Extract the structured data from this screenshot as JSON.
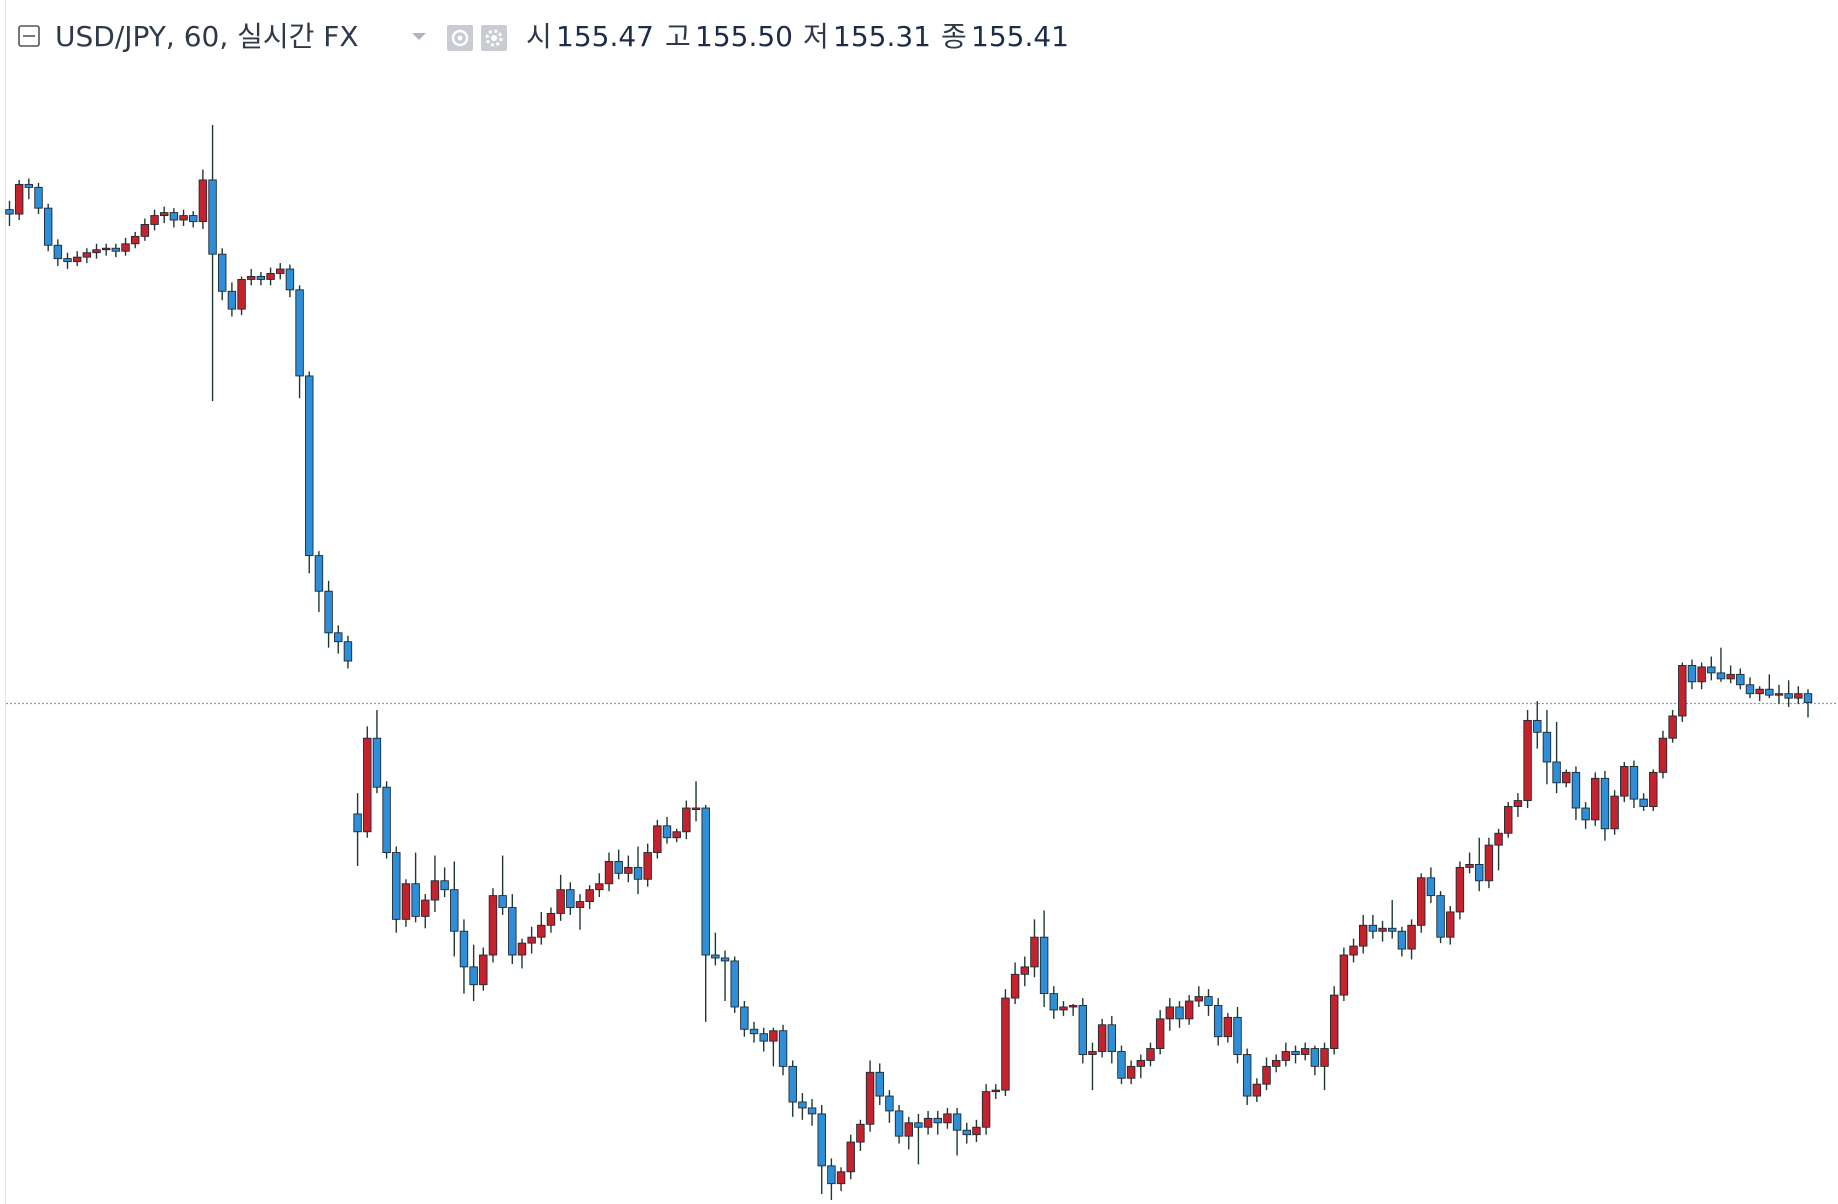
{
  "chart_data": {
    "type": "candlestick",
    "title": "USD/JPY, 60, 실시간 FX",
    "legend_values": [
      {
        "name": "시",
        "text": "155.47"
      },
      {
        "name": "고",
        "text": "155.50"
      },
      {
        "name": "저",
        "text": "155.31"
      },
      {
        "name": "종",
        "text": "155.41"
      }
    ],
    "up_color": "#c4232e",
    "down_color": "#2e8fd8",
    "wick_color": "#1f3a2b",
    "price_line": true,
    "price_line_color": "#7b9ccc",
    "open": [
      158.73,
      158.7,
      158.9,
      158.88,
      158.74,
      158.49,
      158.4,
      158.38,
      158.41,
      158.44,
      158.46,
      158.47,
      158.45,
      158.5,
      158.55,
      158.63,
      158.69,
      158.71,
      158.66,
      158.69,
      158.65,
      158.93,
      158.43,
      158.18,
      158.06,
      158.26,
      158.28,
      158.26,
      158.3,
      158.33,
      158.19,
      157.61,
      156.4,
      156.16,
      155.88,
      155.82,
      154.66,
      154.54,
      155.17,
      154.84,
      154.4,
      153.95,
      154.19,
      153.97,
      154.08,
      154.21,
      154.15,
      153.87,
      153.63,
      153.51,
      153.71,
      154.11,
      154.03,
      153.71,
      153.79,
      153.83,
      153.91,
      153.99,
      154.15,
      154.03,
      154.07,
      154.15,
      154.19,
      154.34,
      154.26,
      154.3,
      154.22,
      154.4,
      154.58,
      154.5,
      154.54,
      154.7,
      154.7,
      153.71,
      153.69,
      153.67,
      153.36,
      153.21,
      153.18,
      153.13,
      153.2,
      152.96,
      152.72,
      152.68,
      152.64,
      152.29,
      152.17,
      152.25,
      152.45,
      152.57,
      152.92,
      152.76,
      152.66,
      152.49,
      152.58,
      152.55,
      152.61,
      152.58,
      152.64,
      152.53,
      152.5,
      152.55,
      152.79,
      152.8,
      153.42,
      153.58,
      153.63,
      153.83,
      153.45,
      153.34,
      153.36,
      153.37,
      153.04,
      153.06,
      153.24,
      153.06,
      152.88,
      152.96,
      153.0,
      153.08,
      153.28,
      153.36,
      153.28,
      153.4,
      153.43,
      153.37,
      153.16,
      153.29,
      153.04,
      152.76,
      152.84,
      152.96,
      153.0,
      153.06,
      153.04,
      153.08,
      152.96,
      153.08,
      153.44,
      153.71,
      153.77,
      153.91,
      153.87,
      153.89,
      153.87,
      153.75,
      153.91,
      154.23,
      154.11,
      153.83,
      154.0,
      154.3,
      154.32,
      154.21,
      154.45,
      154.53,
      154.71,
      154.75,
      155.29,
      155.21,
      155.01,
      154.87,
      154.94,
      154.7,
      154.62,
      154.9,
      154.56,
      154.78,
      154.98,
      154.76,
      154.71,
      154.94,
      155.17,
      155.32,
      155.66,
      155.55,
      155.65,
      155.61,
      155.57,
      155.6,
      155.53,
      155.47,
      155.5,
      155.46,
      155.47,
      155.44,
      155.47
    ],
    "high": [
      158.79,
      158.93,
      158.94,
      158.91,
      158.77,
      158.53,
      158.44,
      158.45,
      158.47,
      158.5,
      158.5,
      158.5,
      158.54,
      158.58,
      158.67,
      158.73,
      158.75,
      158.74,
      158.73,
      158.72,
      159.0,
      159.3,
      158.47,
      158.24,
      158.28,
      158.33,
      158.31,
      158.34,
      158.37,
      158.36,
      158.22,
      157.64,
      156.43,
      156.23,
      155.93,
      155.86,
      154.8,
      155.25,
      155.36,
      154.88,
      154.44,
      154.22,
      154.4,
      154.12,
      154.38,
      154.3,
      154.34,
      153.95,
      153.78,
      153.76,
      154.16,
      154.38,
      154.12,
      153.82,
      153.9,
      154.0,
      154.03,
      154.25,
      154.2,
      154.12,
      154.18,
      154.26,
      154.4,
      154.42,
      154.38,
      154.44,
      154.46,
      154.62,
      154.64,
      154.56,
      154.75,
      154.88,
      154.72,
      153.86,
      153.74,
      153.7,
      153.4,
      153.26,
      153.22,
      153.22,
      153.24,
      153.0,
      152.78,
      152.74,
      152.7,
      152.34,
      152.28,
      152.5,
      152.6,
      153.0,
      152.98,
      152.8,
      152.7,
      152.62,
      152.64,
      152.66,
      152.66,
      152.68,
      152.68,
      152.58,
      152.6,
      152.84,
      152.84,
      153.48,
      153.66,
      153.7,
      153.95,
      154.01,
      153.5,
      153.4,
      153.38,
      153.42,
      153.12,
      153.28,
      153.3,
      153.1,
      153.0,
      153.04,
      153.12,
      153.34,
      153.42,
      153.4,
      153.44,
      153.5,
      153.48,
      153.42,
      153.32,
      153.36,
      153.08,
      152.88,
      153.02,
      153.04,
      153.12,
      153.1,
      153.12,
      153.1,
      153.12,
      153.5,
      153.76,
      153.82,
      153.98,
      153.98,
      153.94,
      154.08,
      153.9,
      153.95,
      154.26,
      154.3,
      154.14,
      154.04,
      154.34,
      154.4,
      154.5,
      154.5,
      154.56,
      154.74,
      154.8,
      155.36,
      155.42,
      155.36,
      155.28,
      154.96,
      154.98,
      154.74,
      154.94,
      154.95,
      154.82,
      155.01,
      155.02,
      154.8,
      154.96,
      155.22,
      155.36,
      155.68,
      155.7,
      155.68,
      155.72,
      155.78,
      155.66,
      155.64,
      155.58,
      155.52,
      155.6,
      155.53,
      155.56,
      155.52,
      155.5
    ],
    "low": [
      158.62,
      158.66,
      158.8,
      158.7,
      158.45,
      158.35,
      158.33,
      158.35,
      158.37,
      158.4,
      158.42,
      158.41,
      158.42,
      158.47,
      158.52,
      158.59,
      158.64,
      158.61,
      158.62,
      158.61,
      158.6,
      157.44,
      158.12,
      158.01,
      158.02,
      158.22,
      158.22,
      158.22,
      158.26,
      158.14,
      157.46,
      156.28,
      156.02,
      155.78,
      155.74,
      155.64,
      154.31,
      154.5,
      154.8,
      154.36,
      153.86,
      153.9,
      153.93,
      153.89,
      154.0,
      154.1,
      153.7,
      153.45,
      153.4,
      153.47,
      153.66,
      153.98,
      153.65,
      153.62,
      153.72,
      153.78,
      153.86,
      153.94,
      153.98,
      153.88,
      154.02,
      154.1,
      154.14,
      154.22,
      154.2,
      154.12,
      154.17,
      154.36,
      154.46,
      154.47,
      154.49,
      154.61,
      153.26,
      153.64,
      153.4,
      153.32,
      153.16,
      153.12,
      153.06,
      152.96,
      152.9,
      152.62,
      152.6,
      152.56,
      152.1,
      152.06,
      152.12,
      152.2,
      152.39,
      152.52,
      152.7,
      152.58,
      152.44,
      152.4,
      152.3,
      152.5,
      152.5,
      152.54,
      152.36,
      152.44,
      152.45,
      152.5,
      152.74,
      152.76,
      153.38,
      153.5,
      153.56,
      153.36,
      153.28,
      153.3,
      153.3,
      152.98,
      152.8,
      153.02,
      152.98,
      152.84,
      152.84,
      152.88,
      152.96,
      153.04,
      153.2,
      153.22,
      153.24,
      153.36,
      153.3,
      153.1,
      153.12,
      152.98,
      152.7,
      152.72,
      152.8,
      152.92,
      152.96,
      152.98,
      153.0,
      152.9,
      152.8,
      153.04,
      153.4,
      153.66,
      153.72,
      153.82,
      153.8,
      153.82,
      153.7,
      153.68,
      153.86,
      154.06,
      153.79,
      153.78,
      153.95,
      154.26,
      154.14,
      154.16,
      154.28,
      154.5,
      154.64,
      154.7,
      155.1,
      154.86,
      154.8,
      154.84,
      154.62,
      154.56,
      154.58,
      154.48,
      154.52,
      154.74,
      154.7,
      154.68,
      154.68,
      154.9,
      155.14,
      155.28,
      155.5,
      155.5,
      155.56,
      155.55,
      155.54,
      155.5,
      155.44,
      155.42,
      155.44,
      155.4,
      155.38,
      155.4,
      155.31
    ],
    "close": [
      158.7,
      158.9,
      158.88,
      158.74,
      158.49,
      158.4,
      158.38,
      158.41,
      158.44,
      158.46,
      158.47,
      158.45,
      158.5,
      158.55,
      158.63,
      158.69,
      158.71,
      158.66,
      158.69,
      158.65,
      158.93,
      158.43,
      158.18,
      158.06,
      158.26,
      158.28,
      158.26,
      158.3,
      158.33,
      158.19,
      157.61,
      156.4,
      156.16,
      155.88,
      155.82,
      155.69,
      154.54,
      155.17,
      154.84,
      154.4,
      153.95,
      154.19,
      153.97,
      154.08,
      154.21,
      154.15,
      153.87,
      153.63,
      153.51,
      153.71,
      154.11,
      154.03,
      153.71,
      153.79,
      153.83,
      153.91,
      153.99,
      154.15,
      154.03,
      154.07,
      154.15,
      154.19,
      154.34,
      154.26,
      154.3,
      154.22,
      154.4,
      154.58,
      154.5,
      154.54,
      154.7,
      154.7,
      153.71,
      153.69,
      153.67,
      153.36,
      153.21,
      153.18,
      153.13,
      153.2,
      152.96,
      152.72,
      152.68,
      152.64,
      152.29,
      152.17,
      152.25,
      152.45,
      152.57,
      152.92,
      152.76,
      152.66,
      152.49,
      152.58,
      152.55,
      152.61,
      152.58,
      152.64,
      152.53,
      152.5,
      152.55,
      152.79,
      152.8,
      153.42,
      153.58,
      153.63,
      153.83,
      153.45,
      153.34,
      153.36,
      153.37,
      153.04,
      153.06,
      153.24,
      153.06,
      152.88,
      152.96,
      153.0,
      153.08,
      153.28,
      153.36,
      153.28,
      153.4,
      153.43,
      153.37,
      153.16,
      153.29,
      153.04,
      152.76,
      152.84,
      152.96,
      153.0,
      153.06,
      153.04,
      153.08,
      152.96,
      153.08,
      153.44,
      153.71,
      153.77,
      153.91,
      153.87,
      153.89,
      153.87,
      153.75,
      153.91,
      154.23,
      154.11,
      153.83,
      154.0,
      154.3,
      154.32,
      154.21,
      154.45,
      154.53,
      154.71,
      154.75,
      155.29,
      155.21,
      155.01,
      154.87,
      154.94,
      154.7,
      154.62,
      154.9,
      154.56,
      154.78,
      154.98,
      154.76,
      154.71,
      154.94,
      155.17,
      155.32,
      155.66,
      155.55,
      155.65,
      155.61,
      155.57,
      155.6,
      155.53,
      155.47,
      155.5,
      155.46,
      155.47,
      155.44,
      155.47,
      155.41
    ]
  }
}
